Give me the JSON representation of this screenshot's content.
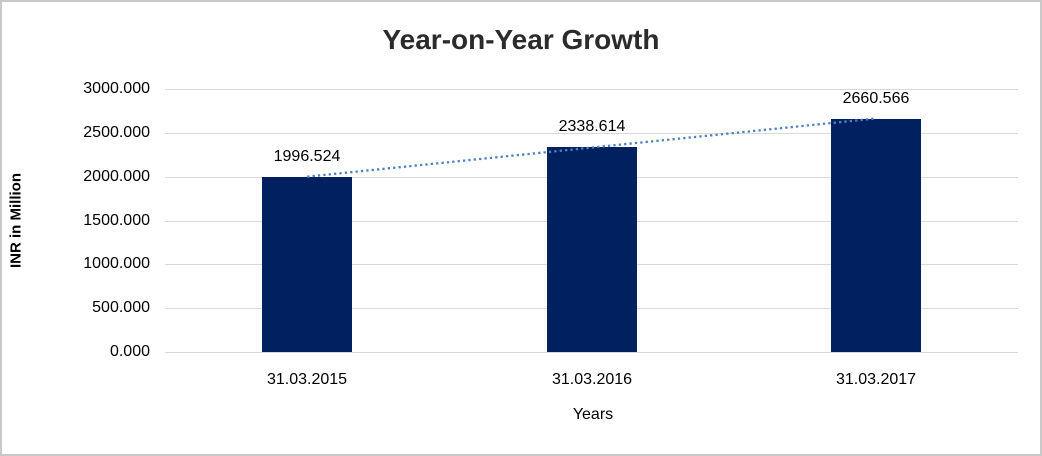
{
  "chart_data": {
    "type": "bar",
    "title": "Year-on-Year Growth",
    "xlabel": "Years",
    "ylabel": "INR in Million",
    "categories": [
      "31.03.2015",
      "31.03.2016",
      "31.03.2017"
    ],
    "values": [
      1996.524,
      2338.614,
      2660.566
    ],
    "data_labels": [
      "1996.524",
      "2338.614",
      "2660.566"
    ],
    "y_ticks": [
      "3000.000",
      "2500.000",
      "2000.000",
      "1500.000",
      "1000.000",
      "500.000",
      "0.000"
    ],
    "ylim": [
      0,
      3000
    ],
    "grid": true,
    "legend": "none",
    "bar_color": "#012060",
    "gridline_color": "#d9d9d9",
    "text_color": "#000000",
    "trendline": {
      "type": "linear",
      "style": "dotted",
      "color": "#4f81bd"
    }
  }
}
